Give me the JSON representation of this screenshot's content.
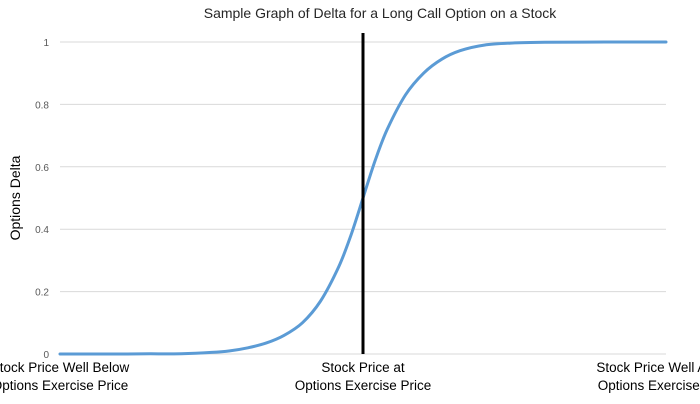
{
  "chart_data": {
    "type": "line",
    "title": "Sample Graph of Delta for a Long Call Option on a Stock",
    "xlabel": "",
    "ylabel": "Options Delta",
    "ylim": [
      0,
      1
    ],
    "yticks": [
      {
        "value": 0,
        "label": "0"
      },
      {
        "value": 0.2,
        "label": "0.2"
      },
      {
        "value": 0.4,
        "label": "0.4"
      },
      {
        "value": 0.6,
        "label": "0.6"
      },
      {
        "value": 0.8,
        "label": "0.8"
      },
      {
        "value": 1,
        "label": "1"
      }
    ],
    "xlim": [
      0,
      1
    ],
    "xticks": [
      {
        "value": 0,
        "lines": [
          "Stock Price Well Below",
          "Options Exercise Price"
        ]
      },
      {
        "value": 0.5,
        "lines": [
          "Stock Price at",
          "Options Exercise Price"
        ]
      },
      {
        "value": 1,
        "lines": [
          "Stock Price Well Above",
          "Options Exercise Price"
        ]
      }
    ],
    "vertical_marker_x": 0.5,
    "grid": true,
    "series": [
      {
        "color": "#5b9bd5",
        "points": [
          [
            0,
            0
          ],
          [
            0.05,
            0
          ],
          [
            0.1,
            0
          ],
          [
            0.15,
            0.0005
          ],
          [
            0.2,
            0.001
          ],
          [
            0.25,
            0.005
          ],
          [
            0.28,
            0.01
          ],
          [
            0.31,
            0.02
          ],
          [
            0.34,
            0.035
          ],
          [
            0.37,
            0.06
          ],
          [
            0.4,
            0.1
          ],
          [
            0.43,
            0.17
          ],
          [
            0.46,
            0.28
          ],
          [
            0.48,
            0.38
          ],
          [
            0.5,
            0.5
          ],
          [
            0.52,
            0.62
          ],
          [
            0.54,
            0.72
          ],
          [
            0.57,
            0.83
          ],
          [
            0.6,
            0.9
          ],
          [
            0.63,
            0.945
          ],
          [
            0.66,
            0.972
          ],
          [
            0.7,
            0.99
          ],
          [
            0.75,
            0.997
          ],
          [
            0.8,
            0.999
          ],
          [
            0.9,
            1
          ],
          [
            1,
            1
          ]
        ]
      }
    ],
    "marker_color": "#000000"
  }
}
